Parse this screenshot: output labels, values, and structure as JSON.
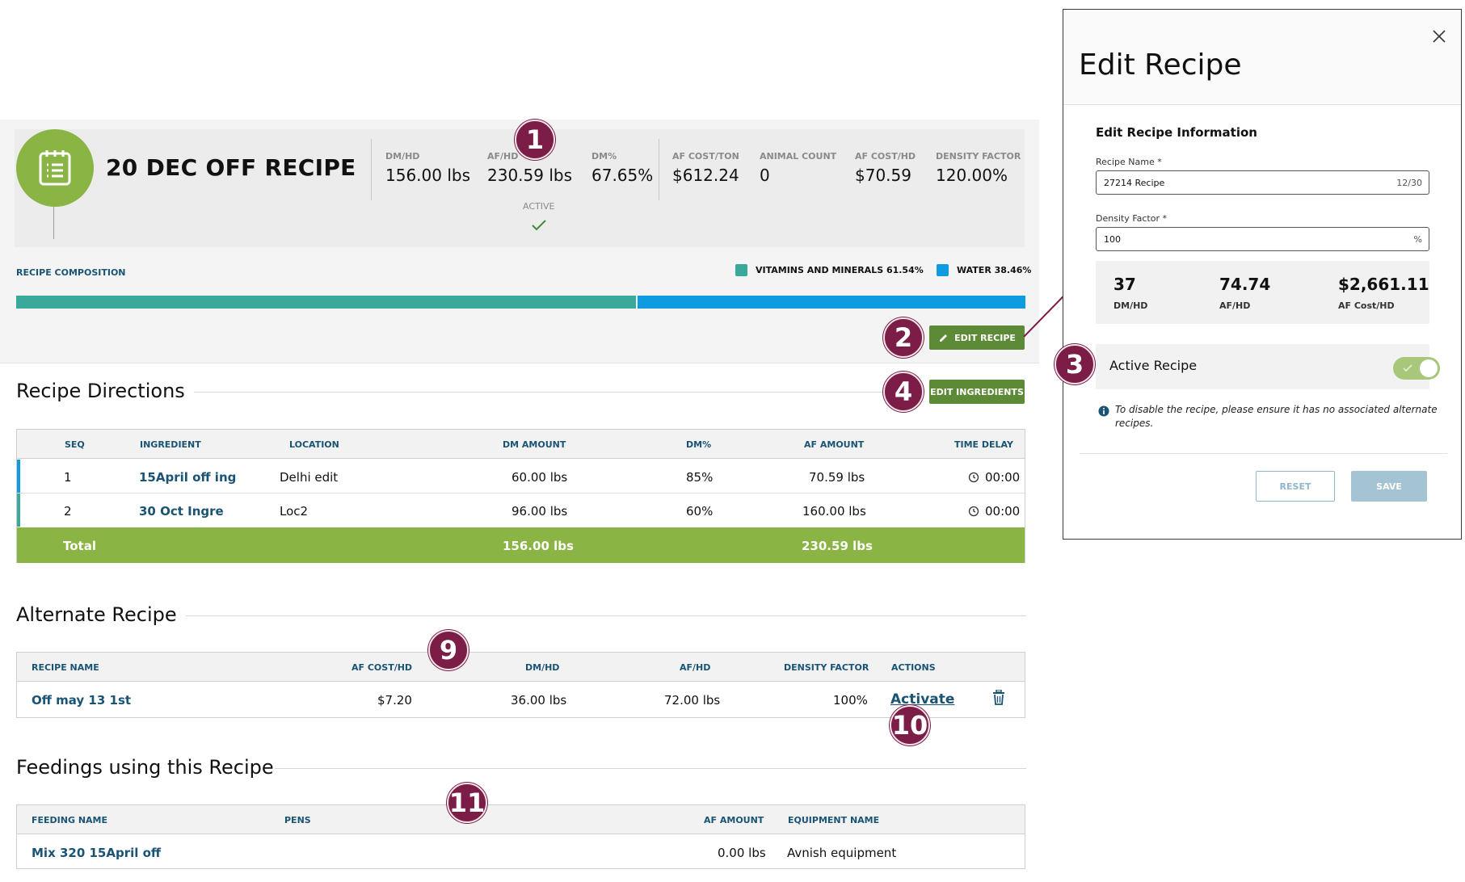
{
  "recipe": {
    "title": "20 DEC OFF RECIPE",
    "stats": [
      {
        "label": "DM/HD",
        "value": "156.00 lbs"
      },
      {
        "label": "AF/HD",
        "value": "230.59 lbs"
      },
      {
        "label": "DM%",
        "value": "67.65%"
      },
      {
        "label": "AF COST/TON",
        "value": "$612.24"
      },
      {
        "label": "ANIMAL COUNT",
        "value": "0"
      },
      {
        "label": "AF COST/HD",
        "value": "$70.59"
      },
      {
        "label": "DENSITY FACTOR",
        "value": "120.00%"
      }
    ],
    "active_label": "ACTIVE",
    "composition_label": "RECIPE COMPOSITION",
    "composition": [
      {
        "name": "VITAMINS AND MINERALS",
        "percent": 61.54,
        "legend": "VITAMINS AND MINERALS 61.54%",
        "color": "#3aa89a"
      },
      {
        "name": "WATER",
        "percent": 38.46,
        "legend": "WATER 38.46%",
        "color": "#0f9be0"
      }
    ],
    "edit_recipe_label": "EDIT RECIPE",
    "edit_ingredients_label": "EDIT INGREDIENTS"
  },
  "callouts": [
    "1",
    "2",
    "3",
    "4",
    "9",
    "10",
    "11"
  ],
  "directions": {
    "title": "Recipe Directions",
    "headers": [
      "SEQ",
      "INGREDIENT",
      "LOCATION",
      "DM AMOUNT",
      "DM%",
      "AF AMOUNT",
      "TIME DELAY"
    ],
    "rows": [
      {
        "seq": "1",
        "ingredient": "15April off ing",
        "location": "Delhi edit",
        "dm_amount": "60.00 lbs",
        "dm_pct": "85%",
        "af_amount": "70.59 lbs",
        "time_delay": "00:00",
        "accent": "#0f9be0"
      },
      {
        "seq": "2",
        "ingredient": "30 Oct Ingre",
        "location": "Loc2",
        "dm_amount": "96.00 lbs",
        "dm_pct": "60%",
        "af_amount": "160.00 lbs",
        "time_delay": "00:00",
        "accent": "#3aa89a"
      }
    ],
    "total": {
      "label": "Total",
      "dm_amount": "156.00 lbs",
      "af_amount": "230.59 lbs"
    }
  },
  "alternate": {
    "title": "Alternate Recipe",
    "headers": [
      "RECIPE NAME",
      "AF COST/HD",
      "DM/HD",
      "AF/HD",
      "DENSITY FACTOR",
      "ACTIONS"
    ],
    "rows": [
      {
        "name": "Off may 13 1st",
        "af_cost_hd": "$7.20",
        "dm_hd": "36.00 lbs",
        "af_hd": "72.00 lbs",
        "density_factor": "100%",
        "action": "Activate"
      }
    ]
  },
  "feedings": {
    "title": "Feedings using this Recipe",
    "headers": [
      "FEEDING NAME",
      "PENS",
      "AF AMOUNT",
      "EQUIPMENT NAME"
    ],
    "rows": [
      {
        "name": "Mix 320 15April off",
        "pens": "",
        "af_amount": "0.00 lbs",
        "equipment": "Avnish equipment"
      }
    ]
  },
  "modal": {
    "title": "Edit Recipe",
    "section_title": "Edit Recipe Information",
    "recipe_name_label": "Recipe Name *",
    "recipe_name_value": "27214 Recipe",
    "recipe_name_counter": "12/30",
    "density_label": "Density Factor *",
    "density_value": "100",
    "density_unit": "%",
    "stats": [
      {
        "value": "37",
        "label": "DM/HD"
      },
      {
        "value": "74.74",
        "label": "AF/HD"
      },
      {
        "value": "$2,661.11",
        "label": "AF Cost/HD"
      }
    ],
    "active_label": "Active Recipe",
    "active_on": true,
    "info_text": "To disable the recipe, please ensure it has no associated alternate recipes.",
    "reset_label": "RESET",
    "save_label": "SAVE"
  },
  "colors": {
    "brand_green": "#8ab443",
    "button_green": "#5d8a37",
    "callout": "#7b1d47",
    "link_blue": "#1a5475"
  }
}
